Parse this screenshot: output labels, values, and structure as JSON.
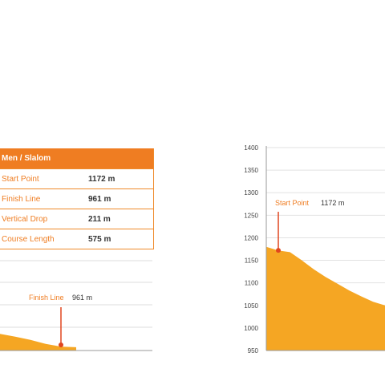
{
  "table": {
    "title": "Men / Slalom",
    "rows": [
      {
        "label": "Start Point",
        "value": "1172 m"
      },
      {
        "label": "Finish Line",
        "value": "961 m"
      },
      {
        "label": "Vertical Drop",
        "value": "211 m"
      },
      {
        "label": "Course Length",
        "value": "575 m"
      }
    ]
  },
  "colors": {
    "accent": "#ef7d22",
    "fill": "#f5a623",
    "marker": "#e0451f",
    "grid": "#dddddd"
  },
  "chart_data": [
    {
      "type": "area",
      "title": "",
      "annotations": [
        {
          "label": "Finish Line",
          "value_text": "961 m",
          "y": 961
        }
      ],
      "profile_y": [
        1005,
        996,
        985,
        972,
        963,
        961
      ]
    },
    {
      "type": "area",
      "title": "",
      "ylim": [
        950,
        1400
      ],
      "y_ticks": [
        950,
        1000,
        1050,
        1100,
        1150,
        1200,
        1250,
        1300,
        1350,
        1400
      ],
      "grid": true,
      "annotations": [
        {
          "label": "Start Point",
          "value_text": "1172 m",
          "y": 1172
        }
      ],
      "profile_y": [
        1180,
        1172,
        1168,
        1150,
        1130,
        1113,
        1098,
        1083,
        1070,
        1058,
        1050
      ]
    }
  ]
}
